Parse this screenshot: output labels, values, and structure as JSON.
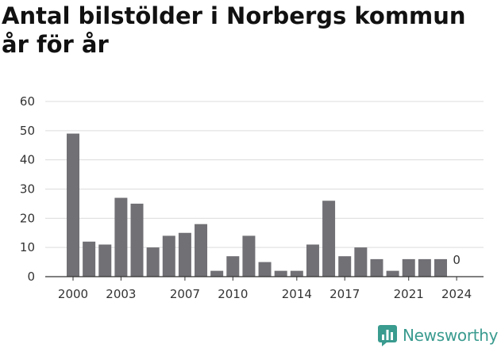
{
  "chart_data": {
    "type": "bar",
    "title": "Antal bilstölder i Norbergs kommun år för år",
    "x": [
      2000,
      2001,
      2002,
      2003,
      2004,
      2005,
      2006,
      2007,
      2008,
      2009,
      2010,
      2011,
      2012,
      2013,
      2014,
      2015,
      2016,
      2017,
      2018,
      2019,
      2020,
      2021,
      2022,
      2023,
      2024
    ],
    "values": [
      49,
      12,
      11,
      27,
      25,
      10,
      14,
      15,
      18,
      2,
      7,
      14,
      5,
      2,
      2,
      11,
      26,
      7,
      10,
      6,
      2,
      6,
      6,
      6,
      0
    ],
    "x_ticks": [
      "2000",
      "2003",
      "2007",
      "2010",
      "2014",
      "2017",
      "2021",
      "2024"
    ],
    "y_ticks": [
      "0",
      "10",
      "20",
      "30",
      "40",
      "50",
      "60"
    ],
    "ylim": [
      0,
      60
    ],
    "bar_color": "#717075",
    "grid": true,
    "value_labels": [
      {
        "year": 2024,
        "text": "0"
      }
    ]
  },
  "brand": {
    "name": "Newsworthy",
    "color": "#3a9b8f"
  }
}
